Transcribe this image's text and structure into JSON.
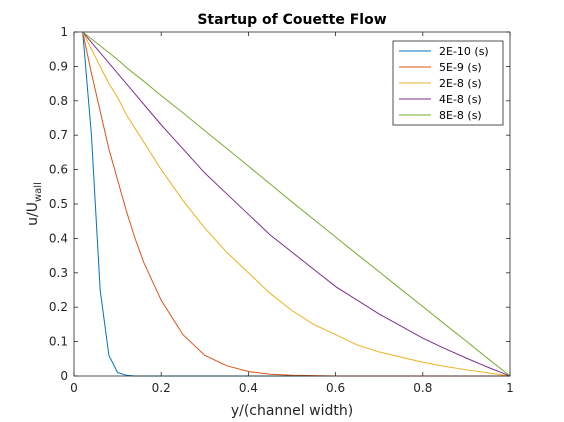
{
  "chart_data": {
    "type": "line",
    "title": "Startup of Couette Flow",
    "xlabel": "y/(channel width)",
    "ylabel_main": "u/U",
    "ylabel_sub": "wall",
    "xlim": [
      0,
      1
    ],
    "ylim": [
      0,
      1
    ],
    "xticks": [
      0,
      0.2,
      0.4,
      0.6,
      0.8,
      1
    ],
    "xtick_labels": [
      "0",
      "0.2",
      "0.4",
      "0.6",
      "0.8",
      "1"
    ],
    "yticks": [
      0,
      0.1,
      0.2,
      0.3,
      0.4,
      0.5,
      0.6,
      0.7,
      0.8,
      0.9,
      1
    ],
    "ytick_labels": [
      "0",
      "0.1",
      "0.2",
      "0.3",
      "0.4",
      "0.5",
      "0.6",
      "0.7",
      "0.8",
      "0.9",
      "1"
    ],
    "grid": false,
    "legend_position": "top-right",
    "x": [
      0.02,
      0.04,
      0.06,
      0.08,
      0.1,
      0.12,
      0.14,
      0.16,
      0.2,
      0.25,
      0.3,
      0.35,
      0.4,
      0.45,
      0.5,
      0.55,
      0.6,
      0.65,
      0.7,
      0.75,
      0.8,
      0.85,
      0.9,
      0.95,
      1.0
    ],
    "series": [
      {
        "name": "2E-10 (s)",
        "color": "#0072BD",
        "values": [
          1.0,
          0.7,
          0.25,
          0.06,
          0.01,
          0.002,
          0.0,
          0.0,
          0.0,
          0.0,
          0.0,
          0.0,
          0.0,
          0.0,
          0.0,
          0.0,
          0.0,
          0.0,
          0.0,
          0.0,
          0.0,
          0.0,
          0.0,
          0.0,
          0.0
        ]
      },
      {
        "name": "5E-9 (s)",
        "color": "#D95319",
        "values": [
          1.0,
          0.88,
          0.77,
          0.66,
          0.57,
          0.48,
          0.4,
          0.33,
          0.22,
          0.12,
          0.06,
          0.03,
          0.013,
          0.005,
          0.002,
          0.001,
          0.0,
          0.0,
          0.0,
          0.0,
          0.0,
          0.0,
          0.0,
          0.0,
          0.0
        ]
      },
      {
        "name": "2E-8 (s)",
        "color": "#EDB120",
        "values": [
          1.0,
          0.95,
          0.9,
          0.85,
          0.81,
          0.76,
          0.72,
          0.68,
          0.6,
          0.51,
          0.43,
          0.36,
          0.3,
          0.24,
          0.19,
          0.15,
          0.12,
          0.09,
          0.07,
          0.055,
          0.04,
          0.028,
          0.018,
          0.009,
          0.0
        ]
      },
      {
        "name": "4E-8 (s)",
        "color": "#7E2F8E",
        "values": [
          1.0,
          0.97,
          0.94,
          0.91,
          0.88,
          0.85,
          0.82,
          0.79,
          0.73,
          0.66,
          0.59,
          0.53,
          0.47,
          0.41,
          0.36,
          0.31,
          0.26,
          0.22,
          0.18,
          0.145,
          0.11,
          0.08,
          0.052,
          0.025,
          0.0
        ]
      },
      {
        "name": "8E-8 (s)",
        "color": "#77AC30",
        "values": [
          1.0,
          0.98,
          0.96,
          0.94,
          0.92,
          0.897,
          0.877,
          0.857,
          0.815,
          0.765,
          0.713,
          0.662,
          0.61,
          0.558,
          0.506,
          0.455,
          0.404,
          0.353,
          0.303,
          0.252,
          0.202,
          0.151,
          0.101,
          0.05,
          0.0
        ]
      }
    ]
  }
}
